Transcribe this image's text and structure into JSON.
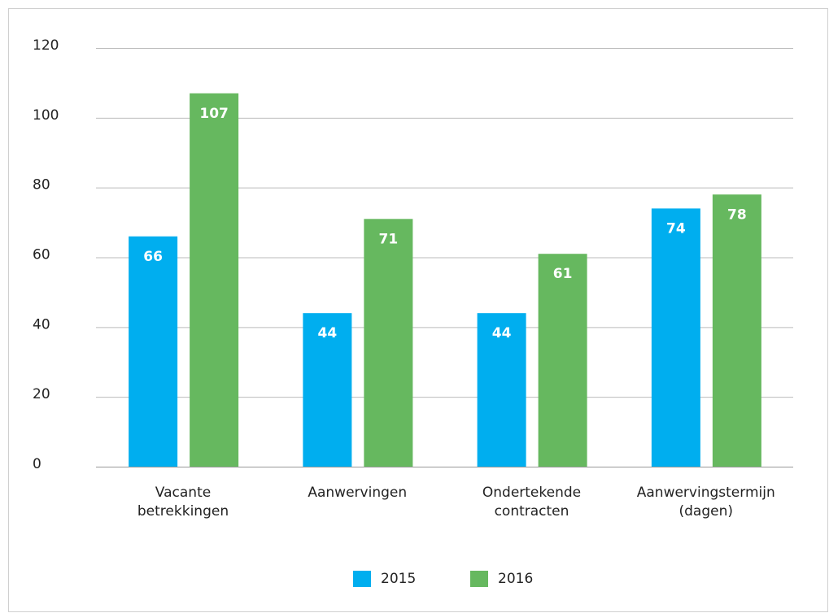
{
  "chart_data": {
    "type": "bar",
    "categories": [
      "Vacante\nbetrekkingen",
      "Aanwervingen",
      "Ondertekende\ncontracten",
      "Aanwervingstermijn\n(dagen)"
    ],
    "series": [
      {
        "name": "2015",
        "color": "#00aeef",
        "values": [
          66,
          44,
          44,
          74
        ]
      },
      {
        "name": "2016",
        "color": "#66b85f",
        "values": [
          107,
          71,
          61,
          78
        ]
      }
    ],
    "ylim": [
      0,
      120
    ],
    "yticks": [
      0,
      20,
      40,
      60,
      80,
      100,
      120
    ],
    "grid": true,
    "legend": "bottom"
  }
}
